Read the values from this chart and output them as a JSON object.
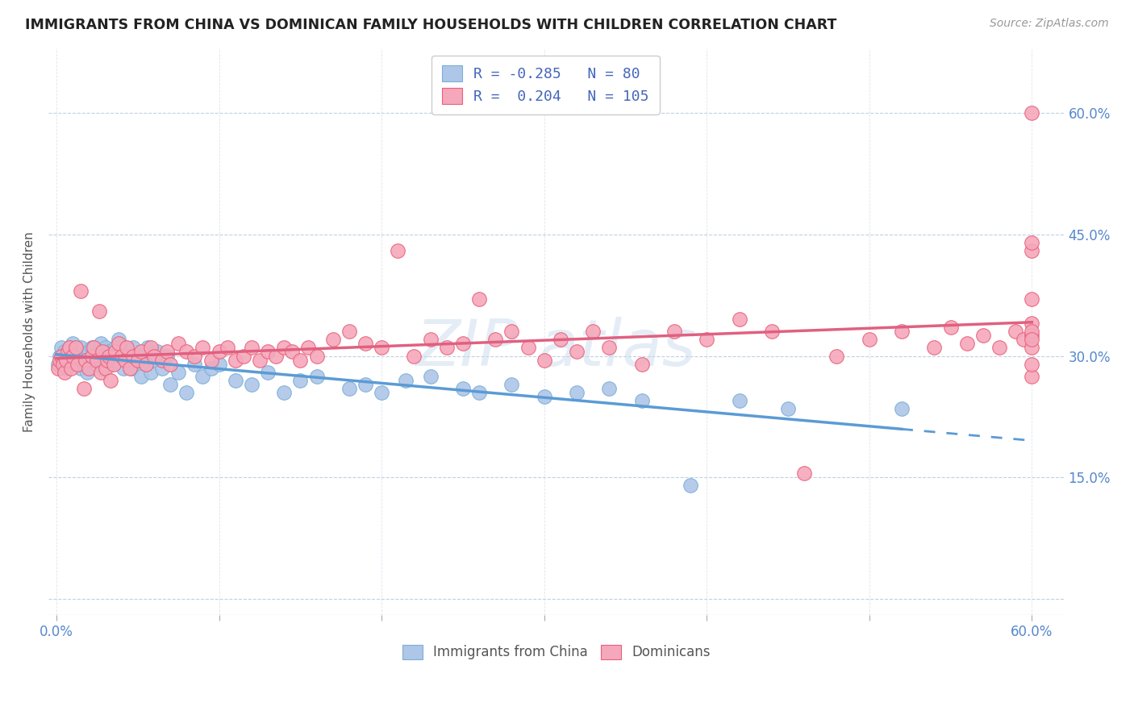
{
  "title": "IMMIGRANTS FROM CHINA VS DOMINICAN FAMILY HOUSEHOLDS WITH CHILDREN CORRELATION CHART",
  "source": "Source: ZipAtlas.com",
  "ylabel": "Family Households with Children",
  "x_ticks": [
    0.0,
    0.1,
    0.2,
    0.3,
    0.4,
    0.5,
    0.6
  ],
  "x_tick_labels_bottom": [
    "0.0%",
    "",
    "",
    "",
    "",
    "",
    "60.0%"
  ],
  "y_ticks": [
    0.0,
    0.15,
    0.3,
    0.45,
    0.6
  ],
  "y_tick_labels_right": [
    "",
    "15.0%",
    "30.0%",
    "45.0%",
    "60.0%"
  ],
  "xlim": [
    -0.005,
    0.62
  ],
  "ylim": [
    -0.02,
    0.68
  ],
  "legend_R_china": "-0.285",
  "legend_N_china": "80",
  "legend_R_dominican": "0.204",
  "legend_N_dominican": "105",
  "china_color": "#aec6e8",
  "china_color_edge": "#7aafd6",
  "dominican_color": "#f5a8bb",
  "dominican_color_edge": "#e8607a",
  "trend_china_color": "#5b9bd5",
  "trend_dominican_color": "#e06080",
  "watermark_text": "ZIP atlas",
  "china_x": [
    0.001,
    0.002,
    0.003,
    0.004,
    0.005,
    0.006,
    0.007,
    0.008,
    0.009,
    0.01,
    0.012,
    0.013,
    0.015,
    0.015,
    0.017,
    0.018,
    0.019,
    0.02,
    0.021,
    0.022,
    0.023,
    0.025,
    0.026,
    0.027,
    0.028,
    0.029,
    0.03,
    0.031,
    0.032,
    0.033,
    0.035,
    0.036,
    0.037,
    0.038,
    0.04,
    0.041,
    0.042,
    0.043,
    0.045,
    0.046,
    0.047,
    0.05,
    0.052,
    0.053,
    0.055,
    0.056,
    0.058,
    0.06,
    0.062,
    0.065,
    0.068,
    0.07,
    0.075,
    0.08,
    0.085,
    0.09,
    0.095,
    0.1,
    0.11,
    0.12,
    0.13,
    0.14,
    0.15,
    0.16,
    0.18,
    0.19,
    0.2,
    0.215,
    0.23,
    0.25,
    0.26,
    0.28,
    0.3,
    0.32,
    0.34,
    0.36,
    0.39,
    0.42,
    0.45,
    0.52
  ],
  "china_y": [
    0.29,
    0.3,
    0.31,
    0.295,
    0.305,
    0.285,
    0.295,
    0.3,
    0.31,
    0.315,
    0.305,
    0.295,
    0.285,
    0.31,
    0.3,
    0.29,
    0.28,
    0.305,
    0.295,
    0.31,
    0.3,
    0.29,
    0.305,
    0.315,
    0.285,
    0.3,
    0.31,
    0.295,
    0.305,
    0.29,
    0.3,
    0.31,
    0.295,
    0.32,
    0.305,
    0.285,
    0.31,
    0.295,
    0.3,
    0.285,
    0.31,
    0.295,
    0.275,
    0.3,
    0.29,
    0.31,
    0.28,
    0.295,
    0.305,
    0.285,
    0.3,
    0.265,
    0.28,
    0.255,
    0.29,
    0.275,
    0.285,
    0.29,
    0.27,
    0.265,
    0.28,
    0.255,
    0.27,
    0.275,
    0.26,
    0.265,
    0.255,
    0.27,
    0.275,
    0.26,
    0.255,
    0.265,
    0.25,
    0.255,
    0.26,
    0.245,
    0.14,
    0.245,
    0.235,
    0.235
  ],
  "dominican_x": [
    0.001,
    0.002,
    0.003,
    0.004,
    0.005,
    0.006,
    0.007,
    0.008,
    0.009,
    0.01,
    0.012,
    0.013,
    0.015,
    0.017,
    0.018,
    0.02,
    0.022,
    0.023,
    0.025,
    0.026,
    0.027,
    0.028,
    0.03,
    0.031,
    0.032,
    0.033,
    0.035,
    0.036,
    0.038,
    0.04,
    0.042,
    0.043,
    0.045,
    0.047,
    0.05,
    0.052,
    0.055,
    0.058,
    0.06,
    0.065,
    0.068,
    0.07,
    0.075,
    0.08,
    0.085,
    0.09,
    0.095,
    0.1,
    0.105,
    0.11,
    0.115,
    0.12,
    0.125,
    0.13,
    0.135,
    0.14,
    0.145,
    0.15,
    0.155,
    0.16,
    0.17,
    0.18,
    0.19,
    0.2,
    0.21,
    0.22,
    0.23,
    0.24,
    0.25,
    0.26,
    0.27,
    0.28,
    0.29,
    0.3,
    0.31,
    0.32,
    0.33,
    0.34,
    0.36,
    0.38,
    0.4,
    0.42,
    0.44,
    0.46,
    0.48,
    0.5,
    0.52,
    0.54,
    0.55,
    0.56,
    0.57,
    0.58,
    0.59,
    0.595,
    0.6,
    0.6,
    0.6,
    0.6,
    0.6,
    0.6,
    0.6,
    0.6,
    0.6,
    0.6,
    0.6
  ],
  "dominican_y": [
    0.285,
    0.295,
    0.3,
    0.29,
    0.28,
    0.295,
    0.305,
    0.31,
    0.285,
    0.3,
    0.31,
    0.29,
    0.38,
    0.26,
    0.295,
    0.285,
    0.3,
    0.31,
    0.295,
    0.355,
    0.28,
    0.305,
    0.285,
    0.295,
    0.3,
    0.27,
    0.29,
    0.305,
    0.315,
    0.3,
    0.295,
    0.31,
    0.285,
    0.3,
    0.295,
    0.305,
    0.29,
    0.31,
    0.3,
    0.295,
    0.305,
    0.29,
    0.315,
    0.305,
    0.3,
    0.31,
    0.295,
    0.305,
    0.31,
    0.295,
    0.3,
    0.31,
    0.295,
    0.305,
    0.3,
    0.31,
    0.305,
    0.295,
    0.31,
    0.3,
    0.32,
    0.33,
    0.315,
    0.31,
    0.43,
    0.3,
    0.32,
    0.31,
    0.315,
    0.37,
    0.32,
    0.33,
    0.31,
    0.295,
    0.32,
    0.305,
    0.33,
    0.31,
    0.29,
    0.33,
    0.32,
    0.345,
    0.33,
    0.155,
    0.3,
    0.32,
    0.33,
    0.31,
    0.335,
    0.315,
    0.325,
    0.31,
    0.33,
    0.32,
    0.34,
    0.275,
    0.29,
    0.31,
    0.325,
    0.37,
    0.33,
    0.32,
    0.43,
    0.44,
    0.6
  ]
}
